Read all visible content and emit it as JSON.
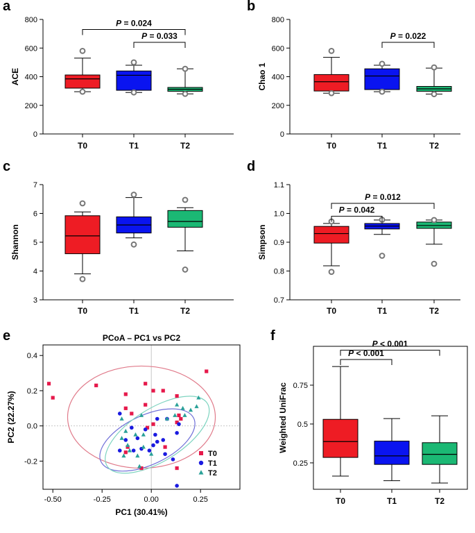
{
  "chart_data": [
    {
      "panel": "a",
      "type": "box",
      "ylabel": "ACE",
      "ylim": [
        0,
        800
      ],
      "yticks": [
        0,
        200,
        400,
        600,
        800
      ],
      "categories": [
        "T0",
        "T1",
        "T2"
      ],
      "boxes": [
        {
          "name": "T0",
          "color": "#ee1c24",
          "q1": 320,
          "median": 385,
          "q3": 412,
          "wlo": 295,
          "whi": 530,
          "outliers": [
            295,
            580
          ]
        },
        {
          "name": "T1",
          "color": "#0a14f0",
          "q1": 305,
          "median": 410,
          "q3": 440,
          "wlo": 290,
          "whi": 480,
          "outliers": [
            290,
            500
          ]
        },
        {
          "name": "T2",
          "color": "#1bb874",
          "q1": 298,
          "median": 312,
          "q3": 325,
          "wlo": 280,
          "whi": 455,
          "outliers": [
            280,
            455
          ]
        }
      ],
      "sig": [
        {
          "from": 0,
          "to": 2,
          "level": 730,
          "text": "P = 0.024"
        },
        {
          "from": 1,
          "to": 2,
          "level": 640,
          "text": "P = 0.033"
        }
      ]
    },
    {
      "panel": "b",
      "type": "box",
      "ylabel": "Chao 1",
      "ylim": [
        0,
        800
      ],
      "yticks": [
        0,
        200,
        400,
        600,
        800
      ],
      "categories": [
        "T0",
        "T1",
        "T2"
      ],
      "boxes": [
        {
          "name": "T0",
          "color": "#ee1c24",
          "q1": 300,
          "median": 365,
          "q3": 415,
          "wlo": 285,
          "whi": 535,
          "outliers": [
            285,
            580
          ]
        },
        {
          "name": "T1",
          "color": "#0a14f0",
          "q1": 310,
          "median": 405,
          "q3": 455,
          "wlo": 295,
          "whi": 480,
          "outliers": [
            295,
            490
          ]
        },
        {
          "name": "T2",
          "color": "#1bb874",
          "q1": 298,
          "median": 315,
          "q3": 332,
          "wlo": 278,
          "whi": 460,
          "outliers": [
            278,
            465
          ]
        }
      ],
      "sig": [
        {
          "from": 1,
          "to": 2,
          "level": 640,
          "text": "P = 0.022"
        }
      ]
    },
    {
      "panel": "c",
      "type": "box",
      "ylabel": "Shannon",
      "ylim": [
        3,
        7
      ],
      "yticks": [
        3,
        4,
        5,
        6,
        7
      ],
      "categories": [
        "T0",
        "T1",
        "T2"
      ],
      "boxes": [
        {
          "name": "T0",
          "color": "#ee1c24",
          "q1": 4.6,
          "median": 5.22,
          "q3": 5.92,
          "wlo": 3.9,
          "whi": 6.05,
          "outliers": [
            3.72,
            6.35
          ]
        },
        {
          "name": "T1",
          "color": "#0a14f0",
          "q1": 5.32,
          "median": 5.6,
          "q3": 5.88,
          "wlo": 5.15,
          "whi": 6.55,
          "outliers": [
            4.92,
            6.65
          ]
        },
        {
          "name": "T2",
          "color": "#1bb874",
          "q1": 5.52,
          "median": 5.72,
          "q3": 6.1,
          "wlo": 4.7,
          "whi": 6.2,
          "outliers": [
            4.05,
            6.47
          ]
        }
      ],
      "sig": []
    },
    {
      "panel": "d",
      "type": "box",
      "ylabel": "Simpson",
      "ylim": [
        0.7,
        1.1
      ],
      "yticks": [
        0.7,
        0.8,
        0.9,
        1.0,
        1.1
      ],
      "categories": [
        "T0",
        "T1",
        "T2"
      ],
      "boxes": [
        {
          "name": "T0",
          "color": "#ee1c24",
          "q1": 0.897,
          "median": 0.93,
          "q3": 0.955,
          "wlo": 0.818,
          "whi": 0.965,
          "outliers": [
            0.797,
            0.972
          ]
        },
        {
          "name": "T1",
          "color": "#0a14f0",
          "q1": 0.946,
          "median": 0.956,
          "q3": 0.965,
          "wlo": 0.927,
          "whi": 0.977,
          "outliers": [
            0.853,
            0.978
          ]
        },
        {
          "name": "T2",
          "color": "#1bb874",
          "q1": 0.948,
          "median": 0.958,
          "q3": 0.97,
          "wlo": 0.893,
          "whi": 0.977,
          "outliers": [
            0.825,
            0.977
          ]
        }
      ],
      "sig": [
        {
          "from": 0,
          "to": 2,
          "level": 1.035,
          "text": "P = 0.012"
        },
        {
          "from": 0,
          "to": 1,
          "level": 0.99,
          "text": "P = 0.042"
        }
      ]
    },
    {
      "panel": "e",
      "type": "scatter",
      "title": "PCoA – PC1 vs PC2",
      "xlabel": "PC1 (30.41%)",
      "ylabel": "PC2 (22.27%)",
      "xlim": [
        -0.55,
        0.45
      ],
      "ylim": [
        -0.36,
        0.46
      ],
      "xticks": [
        -0.5,
        -0.25,
        0.0,
        0.25
      ],
      "xtick_labels": [
        "-0.50",
        "-0.25",
        "0.00",
        "0.25"
      ],
      "yticks": [
        -0.2,
        0.0,
        0.2,
        0.4
      ],
      "ytick_labels": [
        "-0.2",
        "0.0",
        "0.2",
        "0.4"
      ],
      "series": [
        {
          "name": "T0",
          "color": "#e6194b",
          "marker": "square",
          "points": [
            [
              -0.52,
              0.24
            ],
            [
              -0.5,
              0.16
            ],
            [
              -0.28,
              0.23
            ],
            [
              -0.13,
              0.18
            ],
            [
              -0.03,
              0.24
            ],
            [
              0.01,
              0.2
            ],
            [
              0.06,
              0.2
            ],
            [
              0.13,
              0.17
            ],
            [
              0.28,
              0.31
            ],
            [
              -0.13,
              0.1
            ],
            [
              -0.03,
              0.12
            ],
            [
              -0.1,
              0.07
            ],
            [
              0.01,
              0.01
            ],
            [
              -0.02,
              -0.01
            ],
            [
              0.14,
              0.06
            ],
            [
              0.13,
              0.02
            ],
            [
              0.15,
              0.04
            ],
            [
              -0.12,
              -0.12
            ],
            [
              0.07,
              -0.12
            ],
            [
              0.13,
              -0.24
            ],
            [
              -0.05,
              -0.24
            ],
            [
              -0.13,
              -0.15
            ]
          ]
        },
        {
          "name": "T1",
          "color": "#1a1ae0",
          "marker": "circle",
          "points": [
            [
              -0.16,
              0.07
            ],
            [
              -0.1,
              -0.01
            ],
            [
              -0.07,
              -0.07
            ],
            [
              -0.13,
              -0.08
            ],
            [
              -0.16,
              -0.14
            ],
            [
              -0.09,
              -0.14
            ],
            [
              -0.03,
              -0.02
            ],
            [
              0.02,
              -0.05
            ],
            [
              0.03,
              -0.09
            ],
            [
              0.06,
              -0.08
            ],
            [
              0.01,
              -0.11
            ],
            [
              -0.01,
              -0.14
            ],
            [
              0.03,
              0.04
            ],
            [
              0.08,
              0.04
            ],
            [
              0.13,
              -0.04
            ],
            [
              0.14,
              0.01
            ],
            [
              0.13,
              -0.34
            ],
            [
              0.11,
              -0.19
            ],
            [
              0.07,
              -0.16
            ],
            [
              -0.05,
              -0.13
            ]
          ]
        },
        {
          "name": "T2",
          "color": "#2aa198",
          "marker": "triangle",
          "points": [
            [
              0.24,
              0.16
            ],
            [
              0.23,
              0.11
            ],
            [
              0.2,
              0.09
            ],
            [
              0.13,
              0.12
            ],
            [
              0.16,
              0.1
            ],
            [
              0.17,
              0.06
            ],
            [
              0.12,
              0.06
            ],
            [
              0.08,
              0.04
            ],
            [
              -0.05,
              0.06
            ],
            [
              -0.15,
              0.04
            ],
            [
              -0.13,
              -0.03
            ],
            [
              -0.15,
              -0.07
            ],
            [
              -0.12,
              -0.11
            ],
            [
              -0.08,
              -0.05
            ],
            [
              -0.04,
              -0.12
            ],
            [
              -0.04,
              -0.05
            ],
            [
              -0.07,
              -0.17
            ],
            [
              0.0,
              -0.16
            ],
            [
              -0.14,
              -0.17
            ],
            [
              -0.11,
              -0.14
            ],
            [
              -0.06,
              -0.23
            ]
          ]
        }
      ],
      "ellipses": [
        {
          "name": "T0",
          "color": "#e07a8a",
          "cx": -0.05,
          "cy": 0.05,
          "rx": 0.375,
          "ry": 0.29,
          "angle": 0
        },
        {
          "name": "T1",
          "color": "#7070d8",
          "cx": -0.02,
          "cy": -0.08,
          "rx": 0.26,
          "ry": 0.14,
          "angle": -25
        },
        {
          "name": "T2",
          "color": "#7ed4c0",
          "cx": 0.03,
          "cy": -0.05,
          "rx": 0.3,
          "ry": 0.15,
          "angle": -32
        }
      ],
      "legend": [
        "T0",
        "T1",
        "T2"
      ]
    },
    {
      "panel": "f",
      "type": "box",
      "ylabel": "Weighted UniFrac",
      "ylim": [
        0.08,
        1.0
      ],
      "yticks": [
        0.25,
        0.5,
        0.75
      ],
      "ytick_labels": [
        "0.25",
        "0.5",
        "0.75"
      ],
      "categories": [
        "T0",
        "T1",
        "T2"
      ],
      "boxes": [
        {
          "name": "T0",
          "color": "#ee1c24",
          "q1": 0.285,
          "median": 0.387,
          "q3": 0.53,
          "wlo": 0.165,
          "whi": 0.87,
          "outliers": []
        },
        {
          "name": "T1",
          "color": "#0a14f0",
          "q1": 0.24,
          "median": 0.295,
          "q3": 0.39,
          "wlo": 0.135,
          "whi": 0.535,
          "outliers": []
        },
        {
          "name": "T2",
          "color": "#1bb874",
          "q1": 0.24,
          "median": 0.305,
          "q3": 0.38,
          "wlo": 0.12,
          "whi": 0.553,
          "outliers": []
        }
      ],
      "sig": [
        {
          "from": 0,
          "to": 2,
          "level": 0.975,
          "text": "P < 0.001"
        },
        {
          "from": 0,
          "to": 1,
          "level": 0.915,
          "text": "P < 0.001"
        }
      ]
    }
  ]
}
